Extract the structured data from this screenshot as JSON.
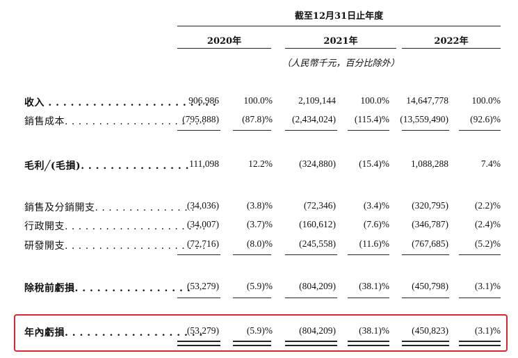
{
  "header": {
    "period": "截至12月31日止年度",
    "years": [
      "2020年",
      "2021年",
      "2022年"
    ],
    "unit": "（人民幣千元，百分比除外）"
  },
  "rows": [
    {
      "label": "收入",
      "v2020": "906,986",
      "p2020": "100.0%",
      "v2021": "2,109,144",
      "p2021": "100.0%",
      "v2022": "14,647,778",
      "p2022": "100.0%"
    },
    {
      "label": "銷售成本",
      "v2020": "(795,888)",
      "p2020": "(87.8)%",
      "v2021": "(2,434,024)",
      "p2021": "(115.4)%",
      "v2022": "(13,559,490)",
      "p2022": "(92.6)%"
    },
    {
      "label": "毛利╱(毛損)",
      "v2020": "111,098",
      "p2020": "12.2%",
      "v2021": "(324,880)",
      "p2021": "(15.4)%",
      "v2022": "1,088,288",
      "p2022": "7.4%"
    },
    {
      "label": "銷售及分銷開支",
      "v2020": "(34,036)",
      "p2020": "(3.8)%",
      "v2021": "(72,346)",
      "p2021": "(3.4)%",
      "v2022": "(320,795)",
      "p2022": "(2.2)%"
    },
    {
      "label": "行政開支",
      "v2020": "(34,007)",
      "p2020": "(3.7)%",
      "v2021": "(160,612)",
      "p2021": "(7.6)%",
      "v2022": "(346,787)",
      "p2022": "(2.4)%"
    },
    {
      "label": "研發開支",
      "v2020": "(72,716)",
      "p2020": "(8.0)%",
      "v2021": "(245,558)",
      "p2021": "(11.6)%",
      "v2022": "(767,685)",
      "p2022": "(5.2)%"
    },
    {
      "label": "除稅前虧損",
      "v2020": "(53,279)",
      "p2020": "(5.9)%",
      "v2021": "(804,209)",
      "p2021": "(38.1)%",
      "v2022": "(450,798)",
      "p2022": "(3.1)%"
    },
    {
      "label": "年內虧損",
      "v2020": "(53,279)",
      "p2020": "(5.9)%",
      "v2021": "(804,209)",
      "p2021": "(38.1)%",
      "v2022": "(450,823)",
      "p2022": "(3.1)%"
    }
  ],
  "highlight_color": "#d9262d"
}
